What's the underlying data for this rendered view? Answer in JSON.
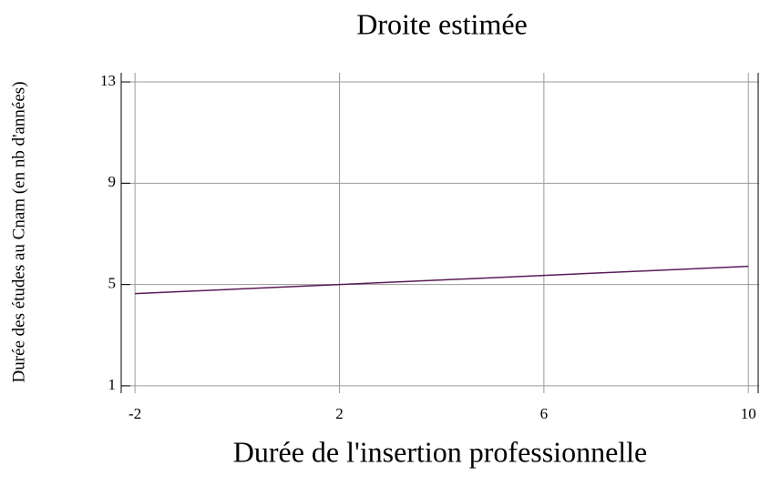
{
  "chart_data": {
    "type": "line",
    "title": "Droite estimée",
    "x_label": "Durée de l'insertion professionnelle",
    "y_label": "Durée des études au Cnam (en nb d'années)",
    "x": [
      -2,
      2,
      6,
      10
    ],
    "series": [
      {
        "name": "Droite estimée",
        "color": "#5a1a5a",
        "values": [
          4.64,
          5.0,
          5.36,
          5.72
        ]
      }
    ],
    "xlim": [
      -2.27,
      10.21
    ],
    "xticks": [
      -2,
      2,
      6,
      10
    ],
    "ylim": [
      0.71,
      13.36
    ],
    "yticks": [
      1,
      5,
      9,
      13
    ],
    "grid": true
  }
}
